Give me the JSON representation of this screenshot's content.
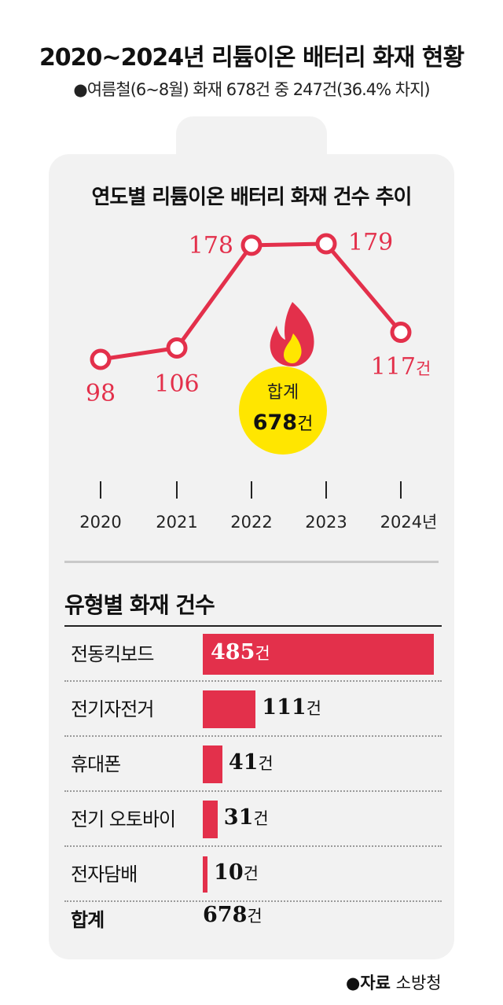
{
  "header": {
    "title": "2020~2024년 리튬이온 배터리 화재 현황",
    "subtitle": "●여름철(6~8월) 화재 678건 중 247건(36.4% 차지)"
  },
  "colors": {
    "accent": "#e3304b",
    "badge": "#ffe600",
    "card_bg": "#f2f2f2"
  },
  "chart_data": [
    {
      "type": "line",
      "title": "연도별 리튬이온 배터리 화재 건수 추이",
      "categories": [
        "2020",
        "2021",
        "2022",
        "2023",
        "2024"
      ],
      "x_tick_labels": [
        "2020",
        "2021",
        "2022",
        "2023",
        "2024년"
      ],
      "values": [
        98,
        106,
        178,
        179,
        117
      ],
      "data_labels": [
        "98",
        "106",
        "178",
        "179",
        "117"
      ],
      "last_label_unit": "건",
      "total_badge": {
        "label": "합계",
        "value": "678",
        "unit": "건",
        "icon": "fire-icon"
      },
      "grid": false,
      "legend": "none"
    },
    {
      "type": "bar",
      "orientation": "horizontal",
      "title": "유형별 화재 건수",
      "categories": [
        "전동킥보드",
        "전기자전거",
        "휴대폰",
        "전기 오토바이",
        "전자담배"
      ],
      "values": [
        485,
        111,
        41,
        31,
        10
      ],
      "value_labels": [
        "485",
        "111",
        "41",
        "31",
        "10"
      ],
      "unit": "건",
      "total": {
        "label": "합계",
        "value": "678",
        "unit": "건"
      }
    }
  ],
  "footer": {
    "bullet": "●",
    "source_label": "자료",
    "source_value": "소방청"
  }
}
